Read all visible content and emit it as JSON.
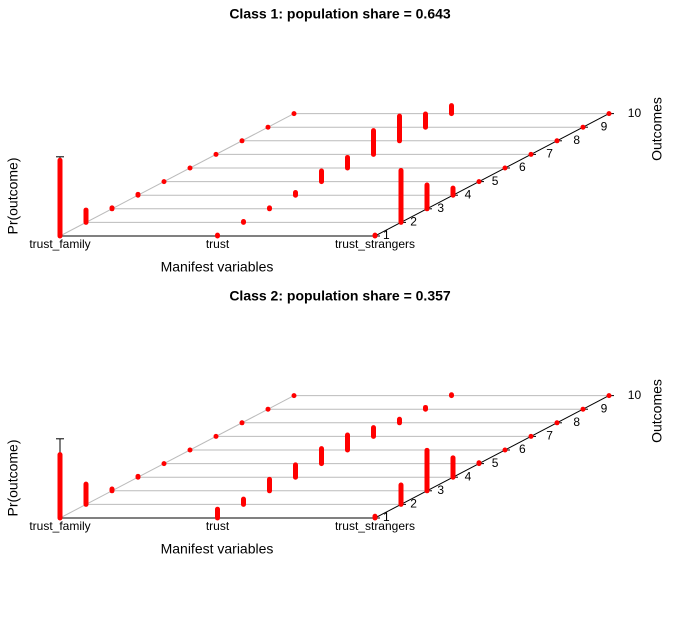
{
  "chart_data": [
    {
      "type": "bar3d",
      "title": "Class 1: population share = 0.643",
      "xlabel": "Manifest variables",
      "ylabel": "Outcomes",
      "zlabel": "Pr(outcome)",
      "categories": [
        "trust_family",
        "trust",
        "trust_strangers"
      ],
      "yticks": [
        1,
        2,
        3,
        4,
        5,
        6,
        7,
        8,
        9,
        10
      ],
      "zlim": [
        0,
        1
      ],
      "color": "#ff0000",
      "values": [
        [
          0.86,
          0.14,
          0.01,
          0.01,
          0,
          0,
          0,
          0,
          0,
          0
        ],
        [
          0.01,
          0.01,
          0.01,
          0.03,
          0.12,
          0.12,
          0.27,
          0.28,
          0.15,
          0.09
        ],
        [
          0.01,
          0.59,
          0.27,
          0.08,
          0,
          0,
          0,
          0,
          0,
          0
        ]
      ]
    },
    {
      "type": "bar3d",
      "title": "Class 2: population share = 0.357",
      "xlabel": "Manifest variables",
      "ylabel": "Outcomes",
      "zlabel": "Pr(outcome)",
      "categories": [
        "trust_family",
        "trust",
        "trust_strangers"
      ],
      "yticks": [
        1,
        2,
        3,
        4,
        5,
        6,
        7,
        8,
        9,
        10
      ],
      "zlim": [
        0,
        1
      ],
      "color": "#ff0000",
      "values": [
        [
          0.72,
          0.23,
          0.02,
          0.01,
          0,
          0,
          0,
          0,
          0,
          0
        ],
        [
          0.1,
          0.06,
          0.13,
          0.14,
          0.17,
          0.17,
          0.1,
          0.04,
          0.02,
          0.01
        ],
        [
          0.02,
          0.22,
          0.46,
          0.22,
          0.01,
          0,
          0,
          0,
          0,
          0
        ]
      ]
    }
  ]
}
